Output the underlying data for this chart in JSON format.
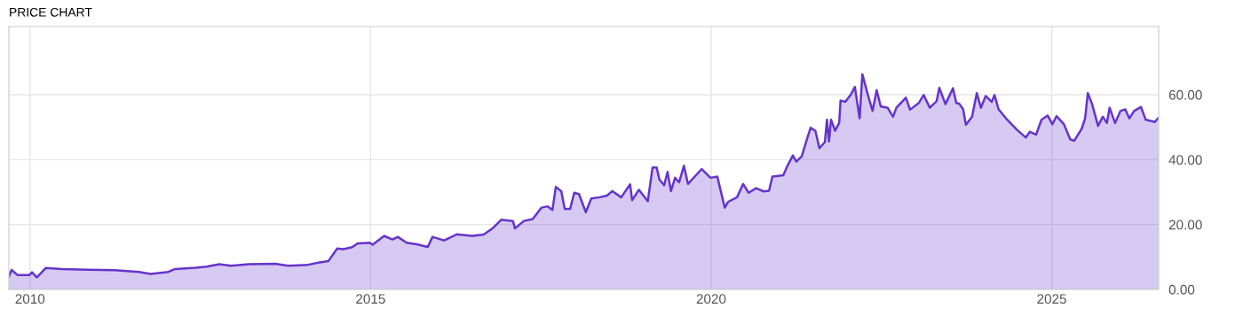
{
  "chart_data": {
    "type": "area",
    "title": "PRICE CHART",
    "x": [
      2009.69,
      2009.73,
      2009.82,
      2009.99,
      2010.03,
      2010.1,
      2010.16,
      2010.23,
      2010.47,
      2010.86,
      2011.25,
      2011.6,
      2011.77,
      2012.03,
      2012.13,
      2012.43,
      2012.59,
      2012.78,
      2012.95,
      2013.21,
      2013.6,
      2013.79,
      2014.08,
      2014.25,
      2014.38,
      2014.51,
      2014.6,
      2014.73,
      2014.81,
      2014.99,
      2015.03,
      2015.2,
      2015.32,
      2015.4,
      2015.53,
      2015.68,
      2015.84,
      2015.91,
      2016.08,
      2016.27,
      2016.49,
      2016.66,
      2016.79,
      2016.92,
      2017.09,
      2017.12,
      2017.25,
      2017.38,
      2017.51,
      2017.6,
      2017.67,
      2017.72,
      2017.8,
      2017.85,
      2017.93,
      2017.99,
      2018.06,
      2018.16,
      2018.24,
      2018.36,
      2018.47,
      2018.55,
      2018.68,
      2018.81,
      2018.84,
      2018.94,
      2019.07,
      2019.14,
      2019.2,
      2019.24,
      2019.31,
      2019.36,
      2019.41,
      2019.47,
      2019.53,
      2019.6,
      2019.66,
      2019.86,
      2019.99,
      2020.09,
      2020.2,
      2020.25,
      2020.38,
      2020.47,
      2020.55,
      2020.66,
      2020.77,
      2020.85,
      2020.9,
      2021.06,
      2021.12,
      2021.2,
      2021.25,
      2021.33,
      2021.42,
      2021.46,
      2021.53,
      2021.59,
      2021.67,
      2021.7,
      2021.73,
      2021.76,
      2021.82,
      2021.88,
      2021.9,
      2021.97,
      2022.05,
      2022.11,
      2022.18,
      2022.22,
      2022.31,
      2022.37,
      2022.43,
      2022.49,
      2022.59,
      2022.67,
      2022.72,
      2022.86,
      2022.92,
      2023.05,
      2023.12,
      2023.21,
      2023.31,
      2023.35,
      2023.44,
      2023.55,
      2023.6,
      2023.64,
      2023.7,
      2023.74,
      2023.83,
      2023.9,
      2023.96,
      2024.03,
      2024.12,
      2024.16,
      2024.22,
      2024.33,
      2024.49,
      2024.62,
      2024.68,
      2024.77,
      2024.85,
      2024.94,
      2025.01,
      2025.07,
      2025.18,
      2025.27,
      2025.33,
      2025.44,
      2025.49,
      2025.53,
      2025.59,
      2025.68,
      2025.75,
      2025.81,
      2025.85,
      2025.93,
      2026.01,
      2026.08,
      2026.14,
      2026.21,
      2026.31,
      2026.38,
      2026.51,
      2026.57
    ],
    "series": [
      {
        "color": "#6633cc",
        "values": [
          4.0,
          6.0,
          4.4,
          4.4,
          5.3,
          3.7,
          5.0,
          6.6,
          6.3,
          6.1,
          5.9,
          5.4,
          4.8,
          5.4,
          6.3,
          6.7,
          7.0,
          7.8,
          7.3,
          7.8,
          7.9,
          7.3,
          7.6,
          8.3,
          8.7,
          12.6,
          12.4,
          13.0,
          14.2,
          14.4,
          13.8,
          16.5,
          15.4,
          16.2,
          14.4,
          13.9,
          13.1,
          16.2,
          15.1,
          17.0,
          16.5,
          16.9,
          18.8,
          21.5,
          21.1,
          18.8,
          21.1,
          21.7,
          25.2,
          25.6,
          24.5,
          31.6,
          30.3,
          24.8,
          24.8,
          29.8,
          29.4,
          23.8,
          28.0,
          28.4,
          28.9,
          30.3,
          28.4,
          32.4,
          27.5,
          30.7,
          27.2,
          37.6,
          37.6,
          33.9,
          32.1,
          36.2,
          30.3,
          34.4,
          33.0,
          38.1,
          32.5,
          37.1,
          34.4,
          34.8,
          25.2,
          27.0,
          28.4,
          32.5,
          29.8,
          31.2,
          30.2,
          30.4,
          34.8,
          35.2,
          38.1,
          41.3,
          39.4,
          41.0,
          47.2,
          49.8,
          48.9,
          43.5,
          45.4,
          52.3,
          45.6,
          52.3,
          48.9,
          51.3,
          58.2,
          57.8,
          60.0,
          62.4,
          52.7,
          66.3,
          59.3,
          55.0,
          61.4,
          56.4,
          56.0,
          53.2,
          56.0,
          59.1,
          55.4,
          57.5,
          59.9,
          56.0,
          58.0,
          62.1,
          57.1,
          62.0,
          57.4,
          57.3,
          55.5,
          50.7,
          53.2,
          60.5,
          56.0,
          59.6,
          57.8,
          59.9,
          55.5,
          52.7,
          49.2,
          46.8,
          48.6,
          47.7,
          52.3,
          53.6,
          50.9,
          53.4,
          50.9,
          46.3,
          45.8,
          49.5,
          52.7,
          60.5,
          57.3,
          50.4,
          53.2,
          51.3,
          56.0,
          51.3,
          55.0,
          55.5,
          52.7,
          55.0,
          56.2,
          52.3,
          51.6,
          52.9
        ]
      }
    ],
    "xlim": [
      2009.69,
      2026.57
    ],
    "xticks": [
      2010,
      2015,
      2020,
      2025
    ],
    "ylim": [
      0,
      81
    ],
    "yticks": [
      {
        "value": 0,
        "label": "0.00"
      },
      {
        "value": 20,
        "label": "20.00"
      },
      {
        "value": 40,
        "label": "40.00"
      },
      {
        "value": 60,
        "label": "60.00"
      }
    ],
    "grid": true
  }
}
